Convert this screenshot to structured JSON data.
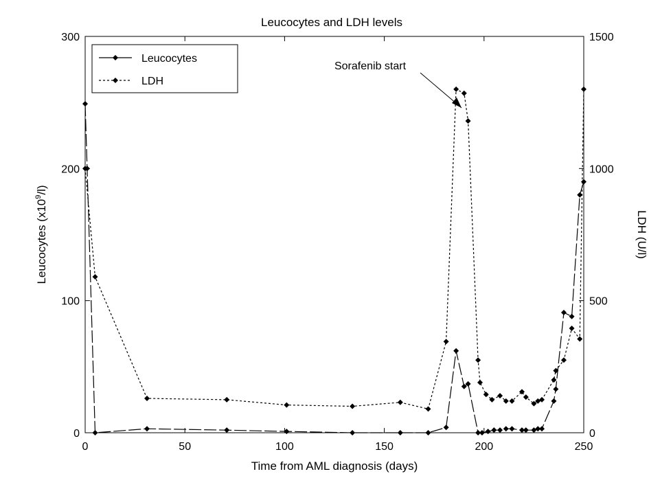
{
  "chart_data": {
    "type": "line",
    "title": "Leucocytes and LDH levels",
    "xlabel": "Time from AML diagnosis (days)",
    "ylabel_left": {
      "prefix": "Leucocytes (x10",
      "sup": "9",
      "suffix": "/l)"
    },
    "ylabel_right": "LDH (U/l)",
    "xlim": [
      0,
      250
    ],
    "ylim_left": [
      0,
      300
    ],
    "ylim_right": [
      0,
      1500
    ],
    "xticks": [
      0,
      50,
      100,
      150,
      200,
      250
    ],
    "yticks_left": [
      0,
      100,
      200,
      300
    ],
    "yticks_right": [
      0,
      500,
      1000,
      1500
    ],
    "grid": false,
    "legend_position": "top-left",
    "annotation": {
      "text": "Sorafenib start",
      "x": 188,
      "y_right": 1220
    },
    "series": [
      {
        "name": "Leucocytes",
        "axis": "left",
        "style": "solid",
        "color": "#000000",
        "x": [
          0,
          1,
          5,
          31,
          71,
          101,
          134,
          158,
          172,
          181,
          186,
          190,
          192,
          197,
          199,
          202,
          205,
          208,
          211,
          214,
          219,
          221,
          225,
          227,
          229,
          235,
          236,
          240,
          244,
          248,
          250
        ],
        "y": [
          249,
          200,
          0,
          3,
          2,
          1,
          0,
          0,
          0,
          4,
          62,
          35,
          37,
          0,
          0,
          1,
          2,
          2,
          3,
          3,
          2,
          2,
          2,
          3,
          3,
          24,
          33,
          91,
          88,
          180,
          190
        ]
      },
      {
        "name": "LDH",
        "axis": "right",
        "style": "dotted",
        "color": "#000000",
        "x": [
          0,
          5,
          31,
          71,
          101,
          134,
          158,
          172,
          181,
          186,
          190,
          192,
          197,
          198,
          201,
          204,
          208,
          211,
          214,
          219,
          221,
          225,
          227,
          229,
          235,
          236,
          240,
          244,
          248,
          250
        ],
        "y": [
          1000,
          590,
          130,
          125,
          105,
          100,
          115,
          90,
          345,
          1300,
          1285,
          1180,
          275,
          190,
          145,
          125,
          140,
          120,
          120,
          155,
          135,
          110,
          120,
          125,
          200,
          235,
          275,
          395,
          355,
          1300
        ]
      }
    ]
  }
}
